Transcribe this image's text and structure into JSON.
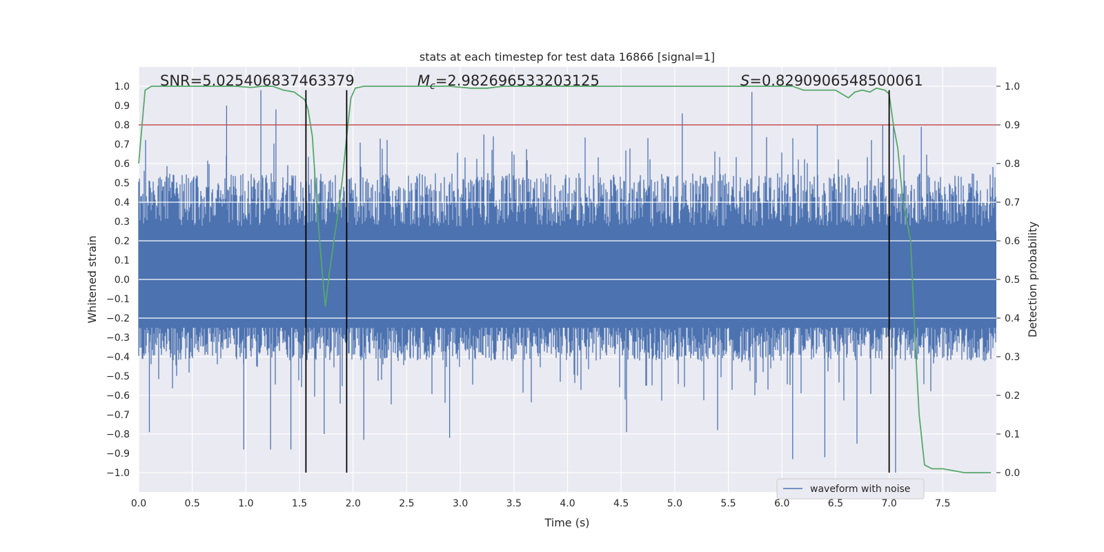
{
  "chart_data": {
    "type": "line",
    "title": "stats at each timestep for test data 16866 [signal=1]",
    "xlabel": "Time (s)",
    "ylabel": "Whitened strain",
    "y2label": "Detection probability",
    "xlim": [
      0.0,
      8.0
    ],
    "ylim": [
      -1.1,
      1.1
    ],
    "y2lim": [
      -0.05,
      1.05
    ],
    "xticks": [
      "0.0",
      "0.5",
      "1.0",
      "1.5",
      "2.0",
      "2.5",
      "3.0",
      "3.5",
      "4.0",
      "4.5",
      "5.0",
      "5.5",
      "6.0",
      "6.5",
      "7.0",
      "7.5"
    ],
    "yticks": [
      "1.0",
      "0.9",
      "0.8",
      "0.7",
      "0.6",
      "0.5",
      "0.4",
      "0.3",
      "0.2",
      "0.1",
      "0.0",
      "-0.1",
      "-0.2",
      "-0.3",
      "-0.4",
      "-0.5",
      "-0.6",
      "-0.7",
      "-0.8",
      "-0.9",
      "-1.0"
    ],
    "y2ticks": [
      "1.0",
      "0.9",
      "0.8",
      "0.7",
      "0.6",
      "0.5",
      "0.4",
      "0.3",
      "0.2",
      "0.1",
      "0.0"
    ],
    "annotations": {
      "snr": "SNR=5.025406837463379",
      "mc_symbol": "M",
      "mc_sub": "c",
      "mc_value": "=2.982696533203125",
      "s_symbol": "S",
      "s_value": "=0.8290906548500061"
    },
    "threshold": {
      "axis": "y2",
      "value": 0.9,
      "color": "#c44e52"
    },
    "vlines": [
      1.56,
      1.94,
      7.0
    ],
    "legend": {
      "label": "waveform with noise",
      "location": "lower-right"
    },
    "series": [
      {
        "name": "waveform with noise",
        "axis": "y",
        "color": "#4c72b0",
        "style": "noise",
        "envelope_upper": [
          0.5,
          0.5
        ],
        "envelope_lower": [
          -0.4,
          -0.4
        ],
        "spikes_up": [
          [
            0.82,
            0.9
          ],
          [
            1.14,
            0.98
          ],
          [
            1.28,
            0.88
          ],
          [
            3.22,
            0.75
          ],
          [
            5.07,
            0.86
          ],
          [
            5.72,
            0.97
          ],
          [
            6.33,
            0.8
          ],
          [
            6.94,
            0.8
          ],
          [
            7.04,
            0.8
          ],
          [
            7.3,
            0.79
          ]
        ],
        "spikes_down": [
          [
            0.1,
            -0.79
          ],
          [
            0.98,
            -0.88
          ],
          [
            1.23,
            -0.88
          ],
          [
            1.42,
            -0.88
          ],
          [
            1.73,
            -0.8
          ],
          [
            2.1,
            -0.83
          ],
          [
            2.9,
            -0.82
          ],
          [
            4.55,
            -0.79
          ],
          [
            5.4,
            -0.78
          ],
          [
            6.1,
            -0.93
          ],
          [
            6.4,
            -0.92
          ],
          [
            6.7,
            -0.85
          ],
          [
            7.06,
            -1.0
          ]
        ]
      },
      {
        "name": "detection probability",
        "axis": "y2",
        "color": "#55a868",
        "x": [
          0.0,
          0.06,
          0.12,
          0.3,
          0.6,
          0.9,
          1.0,
          1.05,
          1.15,
          1.25,
          1.35,
          1.45,
          1.55,
          1.58,
          1.62,
          1.66,
          1.7,
          1.74,
          1.78,
          1.82,
          1.86,
          1.9,
          1.94,
          1.98,
          2.02,
          2.1,
          2.3,
          2.6,
          2.9,
          3.1,
          3.25,
          3.4,
          3.8,
          4.5,
          5.0,
          5.5,
          5.9,
          6.1,
          6.2,
          6.3,
          6.5,
          6.62,
          6.68,
          6.75,
          6.82,
          6.88,
          6.96,
          7.0,
          7.04,
          7.08,
          7.13,
          7.2,
          7.25,
          7.28,
          7.33,
          7.4,
          7.5,
          7.7,
          7.95
        ],
        "values": [
          0.8,
          0.99,
          1.0,
          1.0,
          1.0,
          1.0,
          0.998,
          0.997,
          1.0,
          1.0,
          0.99,
          0.985,
          0.965,
          0.94,
          0.87,
          0.7,
          0.56,
          0.43,
          0.52,
          0.6,
          0.67,
          0.76,
          0.87,
          0.97,
          0.995,
          1.0,
          1.0,
          1.0,
          1.0,
          0.995,
          0.995,
          1.0,
          1.0,
          1.0,
          1.0,
          1.0,
          1.0,
          1.0,
          0.99,
          0.99,
          0.99,
          0.97,
          0.985,
          0.99,
          0.985,
          0.995,
          0.99,
          0.98,
          0.9,
          0.84,
          0.7,
          0.6,
          0.3,
          0.15,
          0.02,
          0.01,
          0.01,
          0.0,
          0.0
        ]
      }
    ]
  }
}
